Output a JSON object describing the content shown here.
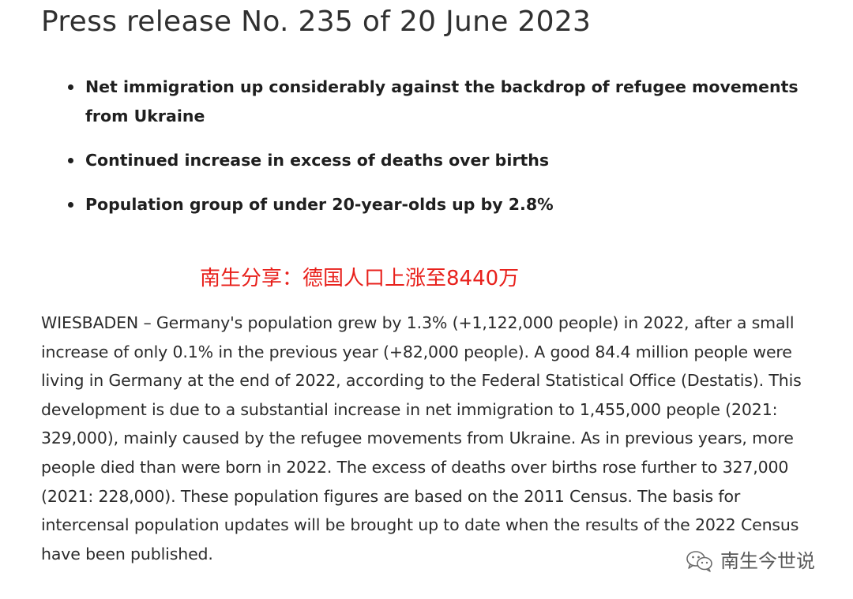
{
  "title": "Press release No. 235 of 20 June 2023",
  "highlights": [
    "Net immigration up considerably against the backdrop of refugee movements from Ukraine",
    "Continued increase in excess of deaths over births",
    "Population group of under 20-year-olds up by 2.8%"
  ],
  "overlay_caption": "南生分享：德国人口上涨至8440万",
  "body": "WIESBADEN – Germany's population grew by 1.3% (+1,122,000 people) in 2022, after a small increase of only 0.1% in the previous year (+82,000 people). A good 84.4 million people were living in Germany at the end of 2022, according to the Federal Statistical Office (Destatis). This development is due to a substantial increase in net immigration to 1,455,000 people (2021: 329,000), mainly caused by the refugee movements from Ukraine. As in previous years, more people died than were born in 2022. The excess of deaths over births rose further to 327,000 (2021: 228,000). These population figures are based on the 2011 Census. The basis for intercensal population updates will be brought up to date when the results of the 2022 Census have been published.",
  "watermark": {
    "icon": "wechat-icon",
    "label": "南生今世说"
  },
  "colors": {
    "overlay_caption": "#e8211c",
    "text": "#222222",
    "watermark": "#5a5a5a"
  }
}
